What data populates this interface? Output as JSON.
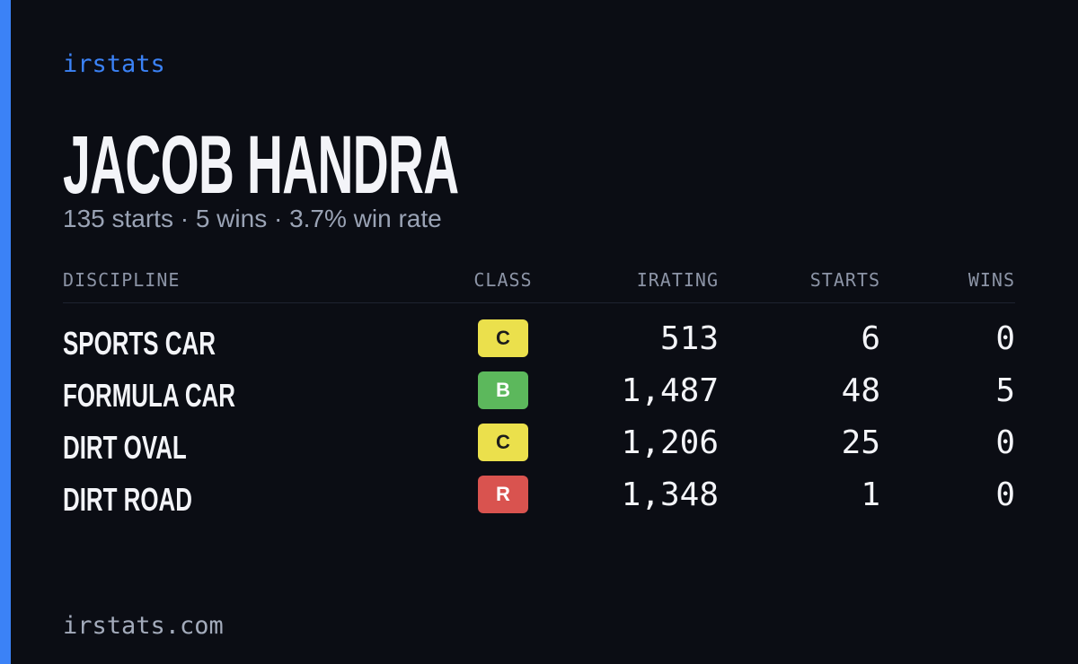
{
  "brand": "irstats",
  "driver": {
    "name": "JACOB HANDRA",
    "summary": "135 starts · 5 wins · 3.7% win rate"
  },
  "table": {
    "headers": [
      "DISCIPLINE",
      "CLASS",
      "IRATING",
      "STARTS",
      "WINS"
    ],
    "rows": [
      [
        "SPORTS CAR",
        "C",
        "513",
        6,
        0
      ],
      [
        "FORMULA CAR",
        "B",
        "1,487",
        48,
        5
      ],
      [
        "DIRT OVAL",
        "C",
        "1,206",
        25,
        0
      ],
      [
        "DIRT ROAD",
        "R",
        "1,348",
        1,
        0
      ]
    ]
  },
  "footer": "irstats.com"
}
